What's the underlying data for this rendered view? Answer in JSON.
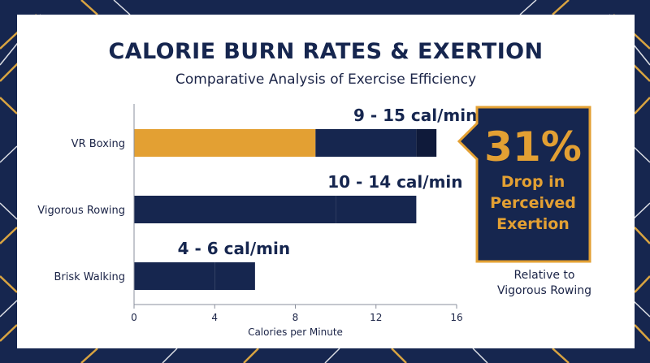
{
  "header": {
    "title": "CALORIE BURN RATES & EXERTION",
    "subtitle": "Comparative Analysis of Exercise Efficiency"
  },
  "colors": {
    "navy": "#16264f",
    "navy_dark": "#0f1a3a",
    "gold": "#e3a033",
    "background": "#16264f",
    "card": "#ffffff"
  },
  "callout": {
    "value": "31%",
    "lines": [
      "Drop in",
      "Perceived",
      "Exertion"
    ],
    "caption_lines": [
      "Relative to",
      "Vigorous Rowing"
    ]
  },
  "chart_data": {
    "type": "bar",
    "orientation": "horizontal",
    "stacked": true,
    "categories": [
      "VR Boxing",
      "Vigorous Rowing",
      "Brisk Walking"
    ],
    "series": [
      {
        "values": [
          9,
          10,
          4
        ]
      },
      {
        "values": [
          5,
          4,
          2
        ]
      },
      {
        "values": [
          1,
          0,
          0
        ]
      }
    ],
    "range_min": [
      9,
      10,
      4
    ],
    "range_max": [
      15,
      14,
      6
    ],
    "data_labels": [
      "9 - 15 cal/min",
      "10 - 14 cal/min",
      "4 - 6 cal/min"
    ],
    "xlabel": "Calories per Minute",
    "ylabel": "",
    "xlim": [
      0,
      16
    ],
    "xticks": [
      0,
      4,
      8,
      12,
      16
    ],
    "grid": false,
    "legend": "none"
  }
}
